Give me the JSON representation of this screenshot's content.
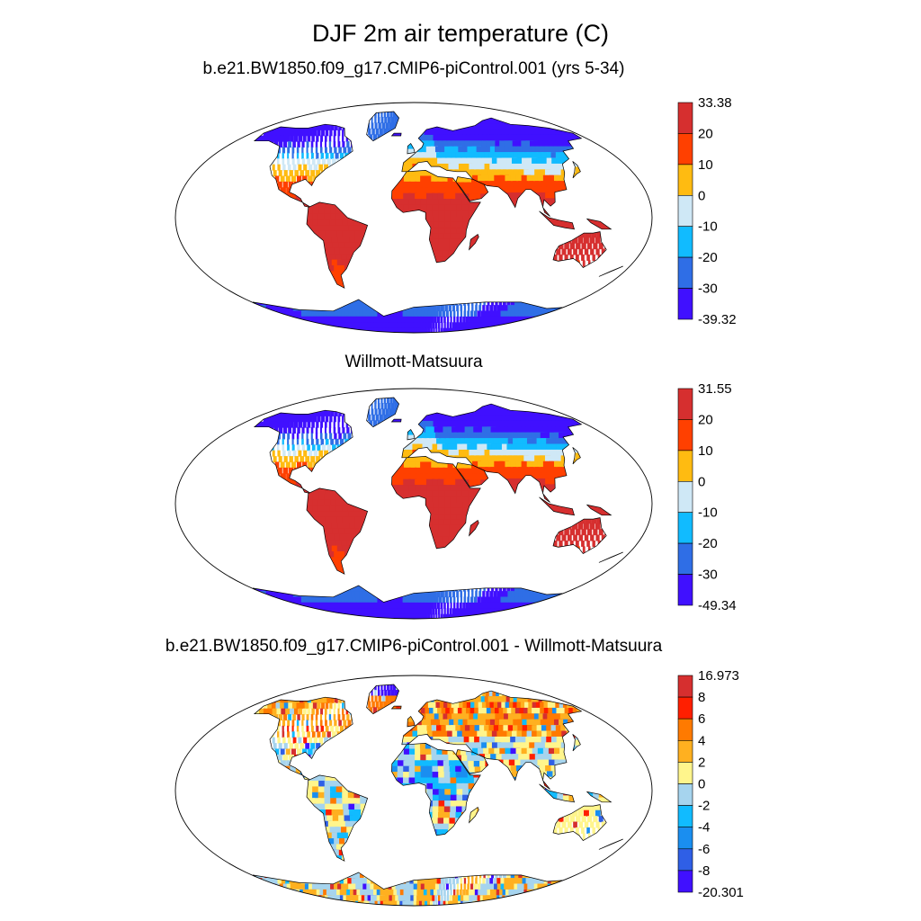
{
  "figure": {
    "title": "DJF 2m air temperature (C)"
  },
  "panels": [
    {
      "title": "b.e21.BW1850.f09_g17.CMIP6-piControl.001 (yrs 5-34)",
      "kind": "absolute",
      "colorbar": {
        "labels": [
          "33.38",
          "20",
          "10",
          "0",
          "-10",
          "-20",
          "-30",
          "-39.32"
        ],
        "colors": [
          "#d62f2f",
          "#ff4000",
          "#ffbb11",
          "#cfe8f6",
          "#11bbff",
          "#2f6ee6",
          "#4010ff"
        ]
      }
    },
    {
      "title": "Willmott-Matsuura",
      "kind": "absolute",
      "colorbar": {
        "labels": [
          "31.55",
          "20",
          "10",
          "0",
          "-10",
          "-20",
          "-30",
          "-49.34"
        ],
        "colors": [
          "#d62f2f",
          "#ff4000",
          "#ffbb11",
          "#cfe8f6",
          "#11bbff",
          "#2f6ee6",
          "#4010ff"
        ]
      }
    },
    {
      "title": "b.e21.BW1850.f09_g17.CMIP6-piControl.001 - Willmott-Matsuura",
      "kind": "difference",
      "colorbar": {
        "labels": [
          "16.973",
          "8",
          "6",
          "4",
          "2",
          "0",
          "-2",
          "-4",
          "-6",
          "-8",
          "-20.301"
        ],
        "colors": [
          "#d62f2f",
          "#ff1f00",
          "#ff7a00",
          "#ffb020",
          "#fff58c",
          "#a6d4ee",
          "#11bbff",
          "#1a8ef0",
          "#2f5fe6",
          "#4010ff"
        ]
      }
    }
  ]
}
